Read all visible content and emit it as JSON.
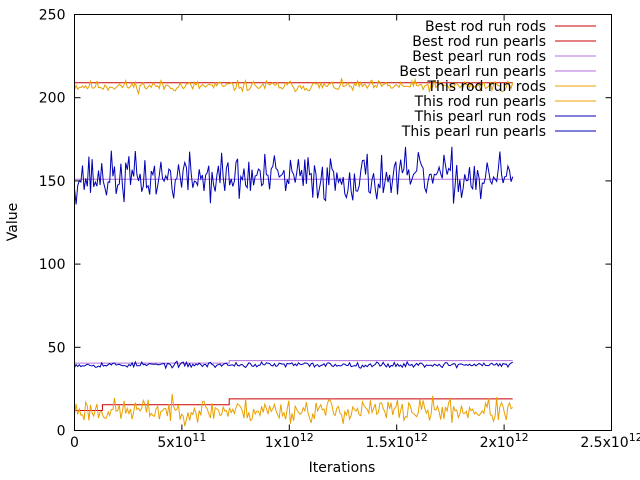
{
  "chart_data": {
    "type": "line",
    "xlabel": "Iterations",
    "ylabel": "Value",
    "xlim": [
      0,
      2500000000000.0
    ],
    "ylim": [
      0,
      250
    ],
    "x_ticks": [
      {
        "value": 0,
        "base": "0",
        "exp": ""
      },
      {
        "value": 500000000000.0,
        "base": "5x10",
        "exp": "11"
      },
      {
        "value": 1000000000000.0,
        "base": "1x10",
        "exp": "12"
      },
      {
        "value": 1500000000000.0,
        "base": "1.5x10",
        "exp": "12"
      },
      {
        "value": 2000000000000.0,
        "base": "2x10",
        "exp": "12"
      },
      {
        "value": 2500000000000.0,
        "base": "2.5x10",
        "exp": "12"
      }
    ],
    "y_ticks": [
      0,
      50,
      100,
      150,
      200,
      250
    ],
    "grid": false,
    "legend_position": "top-right",
    "series": [
      {
        "name": "Best rod run rods",
        "color": "#cc0000",
        "style": "step",
        "points": [
          [
            0,
            209
          ],
          [
            2040000000000.0,
            209
          ]
        ]
      },
      {
        "name": "Best rod run pearls",
        "color": "#cc0000",
        "style": "step",
        "points": [
          [
            0,
            12
          ],
          [
            130000000000.0,
            12
          ],
          [
            130000000000.0,
            15.5
          ],
          [
            720000000000.0,
            15.5
          ],
          [
            720000000000.0,
            19
          ],
          [
            2040000000000.0,
            19
          ]
        ]
      },
      {
        "name": "Best pearl run rods",
        "color": "#b56fdc",
        "style": "step",
        "points": [
          [
            0,
            151
          ],
          [
            2040000000000.0,
            151
          ]
        ]
      },
      {
        "name": "Best pearl run pearls",
        "color": "#b56fdc",
        "style": "step",
        "points": [
          [
            0,
            40.5
          ],
          [
            720000000000.0,
            40.5
          ],
          [
            720000000000.0,
            42
          ],
          [
            2040000000000.0,
            42
          ]
        ]
      },
      {
        "name": "This rod run rods",
        "color": "#e8a000",
        "style": "noisy",
        "x_start": 0,
        "x_end": 2040000000000.0,
        "mean": 207,
        "amplitude": 3,
        "seed": 11
      },
      {
        "name": "This rod run pearls",
        "color": "#e8a000",
        "style": "noisy",
        "x_start": 0,
        "x_end": 2040000000000.0,
        "mean": 12,
        "amplitude": 6.5,
        "seed": 23
      },
      {
        "name": "This pearl run rods",
        "color": "#0000b4",
        "style": "noisy",
        "x_start": 0,
        "x_end": 2040000000000.0,
        "mean": 152,
        "amplitude": 13,
        "seed": 37
      },
      {
        "name": "This pearl run pearls",
        "color": "#0000b4",
        "style": "noisy",
        "x_start": 0,
        "x_end": 2040000000000.0,
        "mean": 39.5,
        "amplitude": 1.5,
        "seed": 53
      }
    ]
  }
}
